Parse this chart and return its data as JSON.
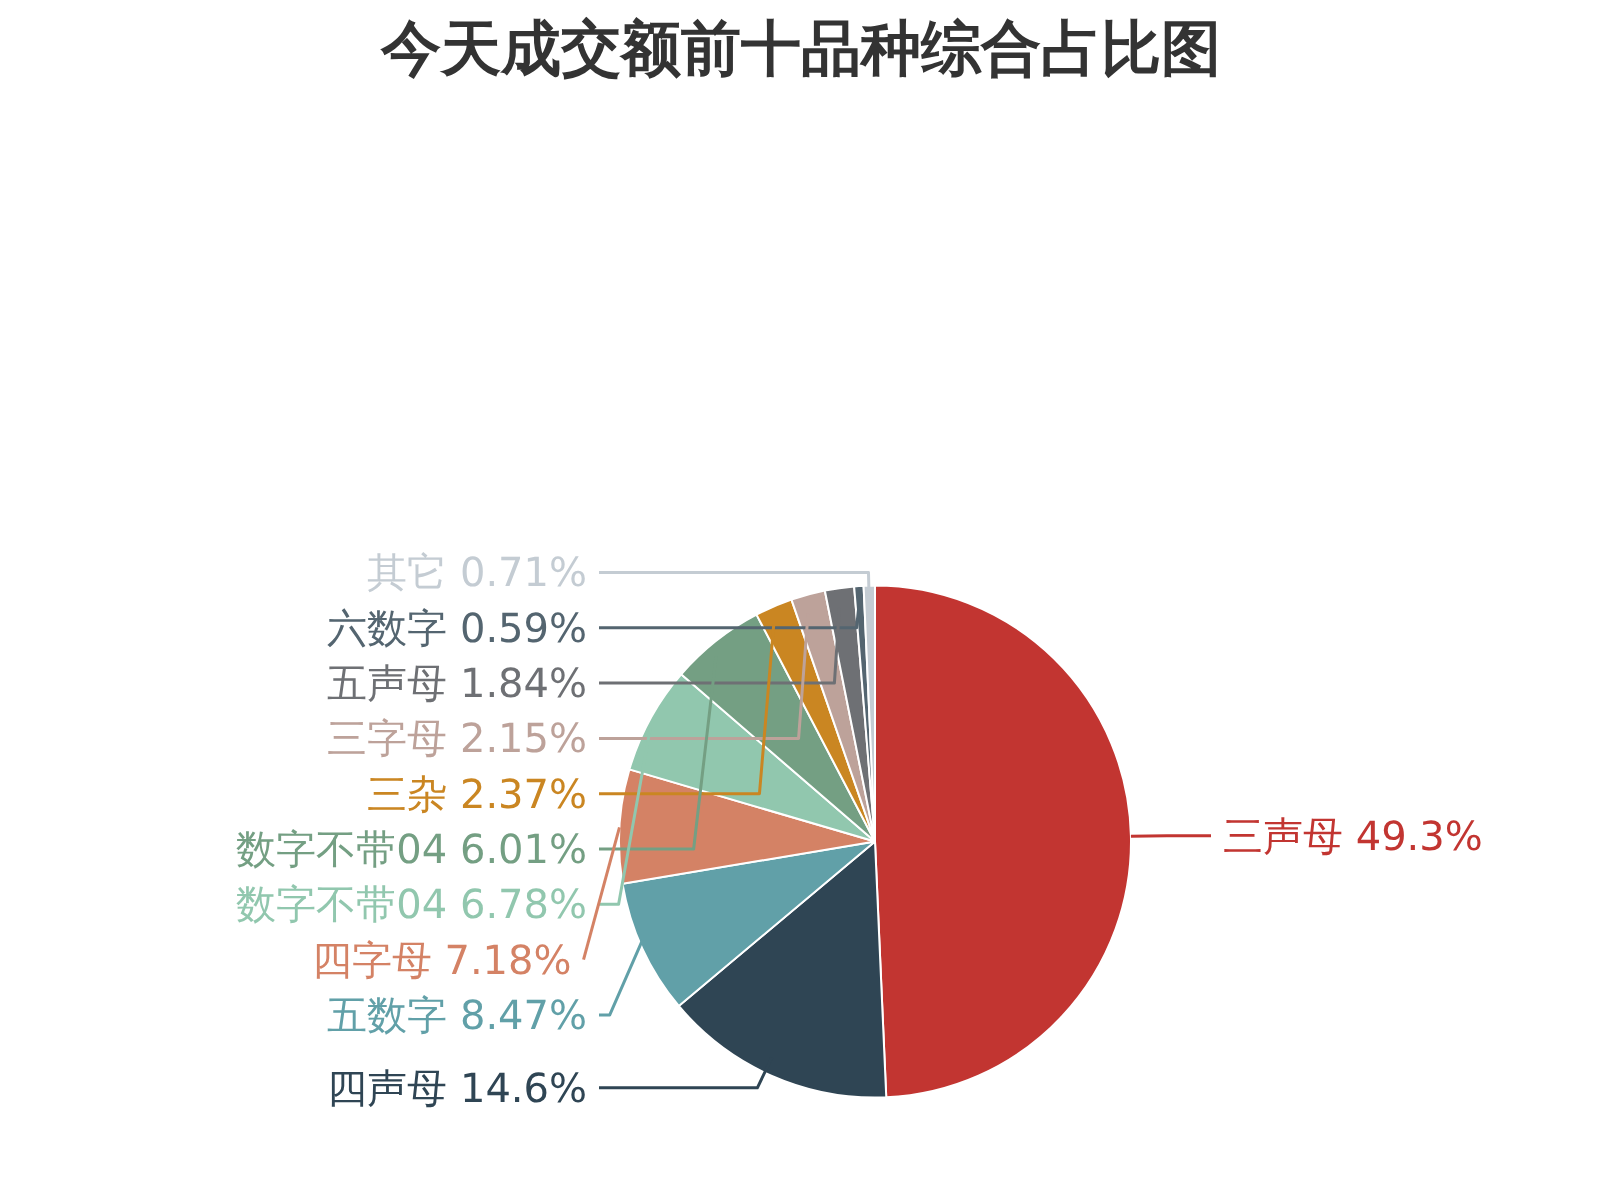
{
  "chart_data": {
    "type": "pie",
    "title": "今天成交额前十品种综合占比图",
    "categories": [
      "三声母",
      "四声母",
      "五数字",
      "四字母",
      "数字不带04",
      "数字不带04",
      "三杂",
      "三字母",
      "五声母",
      "六数字",
      "其它"
    ],
    "values": [
      49.3,
      14.6,
      8.47,
      7.18,
      6.78,
      6.01,
      2.37,
      2.15,
      1.84,
      0.59,
      0.71
    ],
    "value_labels": [
      "49.3%",
      "14.6%",
      "8.47%",
      "7.18%",
      "6.78%",
      "6.01%",
      "2.37%",
      "2.15%",
      "1.84%",
      "0.59%",
      "0.71%"
    ],
    "colors": [
      "#c23531",
      "#2f4554",
      "#61a0a8",
      "#d48265",
      "#91c7ae",
      "#749f83",
      "#ca8622",
      "#bda29a",
      "#6e7074",
      "#546570",
      "#c4ccd3"
    ]
  }
}
